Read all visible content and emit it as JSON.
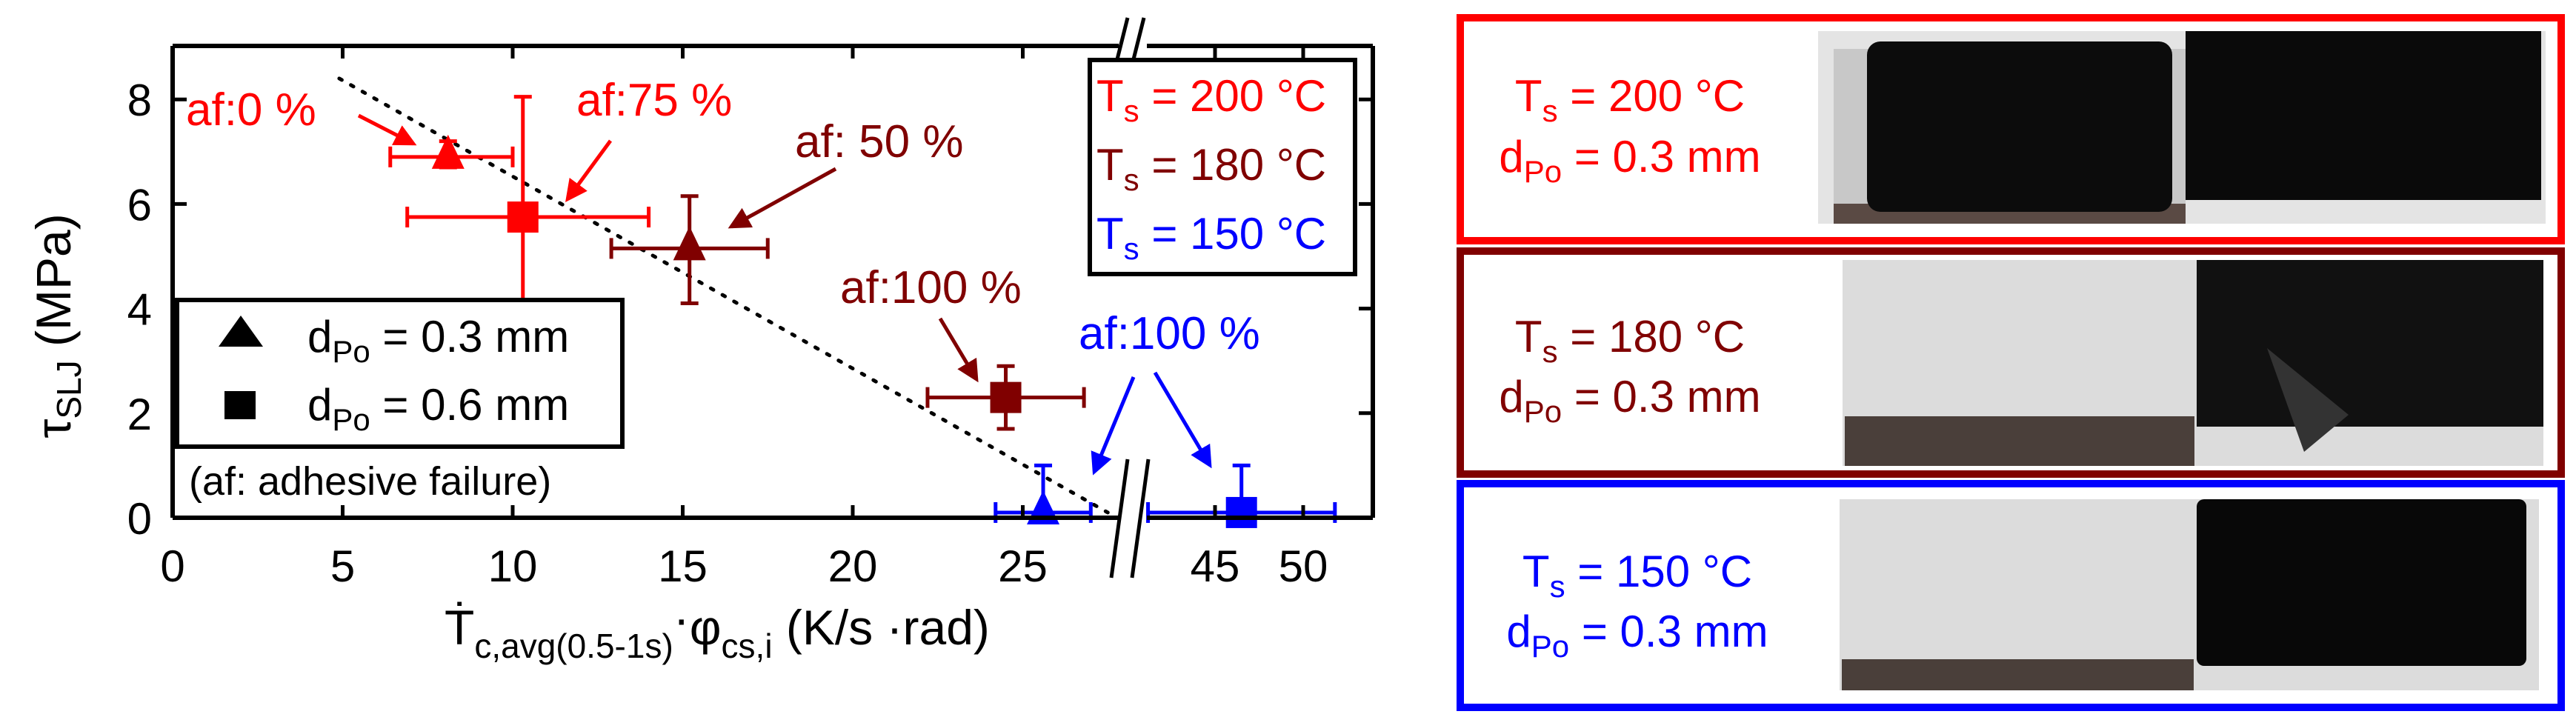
{
  "chart_data": {
    "type": "scatter",
    "xlabel": {
      "main": "Ṫ",
      "sub1": "c,avg(0.5-1s)",
      "dot": "·",
      "phi": "φ",
      "sub2": "cs,i",
      "unit": " (K/s ·rad)"
    },
    "ylabel": {
      "main": "τ",
      "sub": "SLJ",
      "unit": " (MPa)"
    },
    "xlim": [
      0,
      52
    ],
    "x_axis_break": [
      28,
      43
    ],
    "ylim": [
      0,
      8.8
    ],
    "x_ticks": [
      "0",
      "5",
      "10",
      "15",
      "20",
      "25",
      "45",
      "50"
    ],
    "x_tick_values": [
      0,
      5,
      10,
      15,
      20,
      25,
      45,
      50
    ],
    "y_ticks": [
      "0",
      "2",
      "4",
      "6",
      "8"
    ],
    "y_tick_values": [
      0,
      2,
      4,
      6,
      8
    ],
    "colors": {
      "200": "#ff0000",
      "180": "#800000",
      "150": "#0000ff",
      "black": "#000000"
    },
    "points": [
      {
        "series": "200",
        "marker": "triangle",
        "x": 8.1,
        "y": 6.9,
        "xerr": [
          6.4,
          10.0
        ],
        "yerr": [
          6.7,
          7.2
        ]
      },
      {
        "series": "200",
        "marker": "square",
        "x": 10.3,
        "y": 5.75,
        "xerr": [
          6.9,
          14.0
        ],
        "yerr": [
          3.45,
          8.05
        ]
      },
      {
        "series": "180",
        "marker": "triangle",
        "x": 15.2,
        "y": 5.15,
        "xerr": [
          12.9,
          17.5
        ],
        "yerr": [
          4.1,
          6.15
        ]
      },
      {
        "series": "180",
        "marker": "square",
        "x": 24.5,
        "y": 2.3,
        "xerr": [
          22.2,
          26.8
        ],
        "yerr": [
          1.7,
          2.9
        ]
      },
      {
        "series": "150",
        "marker": "triangle",
        "x": 25.6,
        "y": 0.1,
        "xerr": [
          24.2,
          27.0
        ],
        "yerr": [
          0.1,
          1.0
        ]
      },
      {
        "series": "150",
        "marker": "square",
        "x": 46.5,
        "y": 0.1,
        "xerr": [
          41.2,
          51.8
        ],
        "yerr": [
          0.1,
          1.0
        ]
      }
    ],
    "trend_line": {
      "style": "dotted",
      "from": [
        4.9,
        8.4
      ],
      "to": [
        27.5,
        0.1
      ]
    },
    "annotations": [
      {
        "text": "af:0 %",
        "color": "200"
      },
      {
        "text": "af:75 %",
        "color": "200"
      },
      {
        "text": "af: 50 %",
        "color": "180"
      },
      {
        "text": "af:100 %",
        "color": "180"
      },
      {
        "text": "af:100 %",
        "color": "150"
      },
      {
        "text": "(af: adhesive failure)",
        "color": "black"
      }
    ],
    "legend_markers": [
      {
        "marker": "triangle",
        "label_main": "d",
        "label_sub": "Po",
        "label_rest": " = 0.3 mm"
      },
      {
        "marker": "square",
        "label_main": "d",
        "label_sub": "Po",
        "label_rest": " = 0.6 mm"
      }
    ],
    "legend_temps": [
      {
        "main": "T",
        "sub": "s",
        "rest": " = 200 °C",
        "color": "200"
      },
      {
        "main": "T",
        "sub": "s",
        "rest": " = 180 °C",
        "color": "180"
      },
      {
        "main": "T",
        "sub": "s",
        "rest": " = 150 °C",
        "color": "150"
      }
    ],
    "legend_placement": {
      "markers": "lower-left",
      "temps": "top-right"
    },
    "grid": false
  },
  "panels": [
    {
      "t_main": "T",
      "t_sub": "s",
      "t_rest": " = 200 °C",
      "d_main": "d",
      "d_sub": "Po",
      "d_rest": " = 0.3 mm",
      "color": "#ff0000"
    },
    {
      "t_main": "T",
      "t_sub": "s",
      "t_rest": " = 180 °C",
      "d_main": "d",
      "d_sub": "Po",
      "d_rest": " = 0.3 mm",
      "color": "#800000"
    },
    {
      "t_main": "T",
      "t_sub": "s",
      "t_rest": " = 150 °C",
      "d_main": "d",
      "d_sub": "Po",
      "d_rest": " = 0.3 mm",
      "color": "#0000ff"
    }
  ]
}
